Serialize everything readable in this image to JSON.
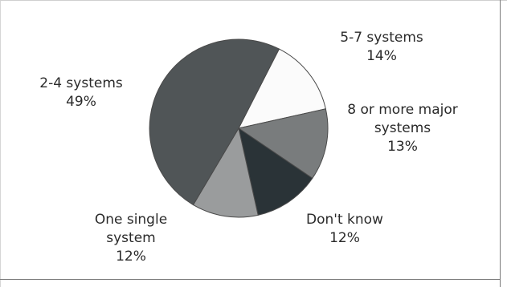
{
  "chart_data": {
    "type": "pie",
    "slices": [
      {
        "label_lines": [
          "5-7 systems"
        ],
        "value_text": "14%",
        "value": 14,
        "color": "#fbfbfb"
      },
      {
        "label_lines": [
          "8 or more major",
          "systems"
        ],
        "value_text": "13%",
        "value": 13,
        "color": "#797c7d"
      },
      {
        "label_lines": [
          "Don't know"
        ],
        "value_text": "12%",
        "value": 12,
        "color": "#2a3337"
      },
      {
        "label_lines": [
          "One single",
          "system"
        ],
        "value_text": "12%",
        "value": 12,
        "color": "#9a9c9d"
      },
      {
        "label_lines": [
          "2-4 systems"
        ],
        "value_text": "49%",
        "value": 49,
        "color": "#505557"
      }
    ],
    "start_angle_deg": 27,
    "stroke_color": "#4a4a4a"
  }
}
